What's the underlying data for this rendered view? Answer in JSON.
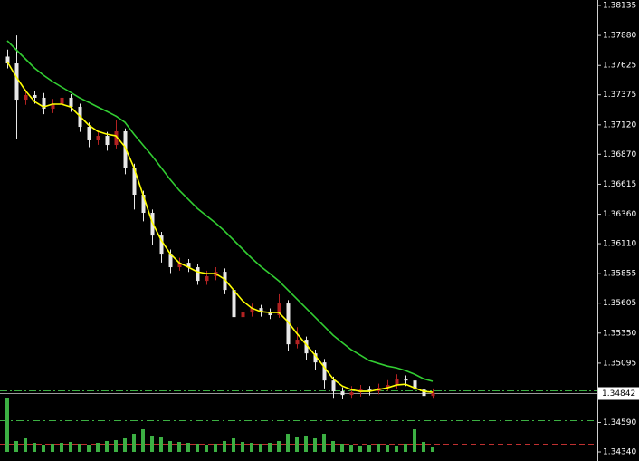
{
  "chart_data": {
    "type": "candlestick",
    "ylim": [
      1.34263,
      1.38181
    ],
    "yticks": [
      1.38135,
      {
        "value": 1.3788,
        "label": "1.37880"
      },
      1.37625,
      1.37375,
      {
        "value": 1.3712,
        "label": "1.37120"
      },
      {
        "value": 1.3687,
        "label": "1.36870"
      },
      1.36615,
      {
        "value": 1.3636,
        "label": "1.36360"
      },
      {
        "value": 1.3611,
        "label": "1.36110"
      },
      1.35855,
      1.35605,
      {
        "value": 1.3535,
        "label": "1.35350"
      },
      1.35095,
      {
        "value": 1.3459,
        "label": "1.34590"
      },
      {
        "value": 1.3434,
        "label": "1.34340"
      }
    ],
    "last_price": 1.34842,
    "up_color": "#b22222",
    "down_color": "#e8e8e8",
    "candles": {
      "open": [
        1.377,
        1.37642,
        1.37334,
        1.37373,
        1.3735,
        1.37257,
        1.37296,
        1.3735,
        1.37273,
        1.37103,
        1.36988,
        1.37026,
        1.36949,
        1.37065,
        1.36757,
        1.36526,
        1.36372,
        1.36179,
        1.36025,
        1.3591,
        1.35948,
        1.3591,
        1.35794,
        1.35833,
        1.35871,
        1.35717,
        1.35486,
        1.35525,
        1.35563,
        1.35525,
        1.35502,
        1.35602,
        1.35255,
        1.35294,
        1.35178,
        1.35101,
        1.34947,
        1.34855,
        1.34824,
        1.34847,
        1.3487,
        1.34855,
        1.34886,
        1.34909,
        1.34963,
        1.34947,
        1.3487,
        1.34816
      ],
      "high": [
        1.3776,
        1.3788,
        1.3742,
        1.3741,
        1.3739,
        1.3734,
        1.374,
        1.3738,
        1.373,
        1.3714,
        1.3707,
        1.3706,
        1.3716,
        1.3709,
        1.3679,
        1.3656,
        1.364,
        1.3621,
        1.3606,
        1.3599,
        1.3598,
        1.3594,
        1.3588,
        1.3591,
        1.359,
        1.3574,
        1.3557,
        1.356,
        1.3559,
        1.3556,
        1.3568,
        1.3563,
        1.354,
        1.3532,
        1.3521,
        1.3513,
        1.3498,
        1.3489,
        1.349,
        1.3491,
        1.349,
        1.3492,
        1.3495,
        1.35,
        1.3499,
        1.3498,
        1.349,
        1.3488
      ],
      "low": [
        1.376,
        1.37,
        1.3729,
        1.373,
        1.3721,
        1.3722,
        1.3726,
        1.3723,
        1.3706,
        1.3693,
        1.3695,
        1.369,
        1.3692,
        1.367,
        1.364,
        1.363,
        1.361,
        1.3595,
        1.3586,
        1.3588,
        1.3587,
        1.3576,
        1.3576,
        1.358,
        1.3568,
        1.354,
        1.3545,
        1.3549,
        1.3549,
        1.3547,
        1.3548,
        1.352,
        1.3522,
        1.3512,
        1.3504,
        1.3488,
        1.348,
        1.3479,
        1.348,
        1.3481,
        1.3482,
        1.3483,
        1.3486,
        1.3488,
        1.349,
        1.3444,
        1.3478,
        1.348
      ],
      "close": [
        1.37642,
        1.37334,
        1.37373,
        1.3735,
        1.37257,
        1.37296,
        1.3735,
        1.37273,
        1.37103,
        1.36988,
        1.37026,
        1.36949,
        1.37065,
        1.36757,
        1.36526,
        1.36372,
        1.36179,
        1.36025,
        1.3591,
        1.35948,
        1.3591,
        1.35794,
        1.35833,
        1.35871,
        1.35717,
        1.35486,
        1.35525,
        1.35563,
        1.35525,
        1.35502,
        1.35602,
        1.35255,
        1.35294,
        1.35178,
        1.35101,
        1.34947,
        1.34855,
        1.34824,
        1.34847,
        1.3487,
        1.34855,
        1.34886,
        1.34909,
        1.34963,
        1.34947,
        1.3487,
        1.34816,
        1.34842
      ]
    },
    "series": [
      {
        "color": "#ffff00",
        "values": [
          1.37657,
          1.37527,
          1.37411,
          1.37319,
          1.37272,
          1.37296,
          1.37296,
          1.37272,
          1.37195,
          1.37118,
          1.37065,
          1.37041,
          1.37026,
          1.36934,
          1.36757,
          1.36526,
          1.36295,
          1.36141,
          1.36025,
          1.35948,
          1.3591,
          1.35871,
          1.35856,
          1.35856,
          1.35809,
          1.35717,
          1.35625,
          1.35563,
          1.35532,
          1.35525,
          1.35525,
          1.35448,
          1.35347,
          1.35255,
          1.35163,
          1.35063,
          1.34962,
          1.34901,
          1.3487,
          1.34855,
          1.34855,
          1.3487,
          1.34885,
          1.34909,
          1.34916,
          1.34885,
          1.34855,
          1.34847
        ]
      },
      {
        "color": "#32cd32",
        "values": [
          1.37835,
          1.37758,
          1.37681,
          1.37604,
          1.37542,
          1.37488,
          1.37442,
          1.37396,
          1.37349,
          1.37311,
          1.37272,
          1.37234,
          1.37195,
          1.37142,
          1.37041,
          1.36949,
          1.36857,
          1.36757,
          1.36656,
          1.36564,
          1.36487,
          1.3641,
          1.36348,
          1.36287,
          1.36218,
          1.36141,
          1.36064,
          1.35987,
          1.35917,
          1.35856,
          1.35794,
          1.35717,
          1.3564,
          1.35563,
          1.35486,
          1.35409,
          1.35332,
          1.3527,
          1.35209,
          1.35163,
          1.35116,
          1.35093,
          1.3507,
          1.35055,
          1.35032,
          1.35001,
          1.34962,
          1.3494
        ]
      }
    ],
    "volume": {
      "color": "#3cb043",
      "ylim": [
        0,
        1000
      ],
      "values": [
        600,
        120,
        150,
        100,
        80,
        90,
        100,
        110,
        90,
        80,
        100,
        120,
        130,
        150,
        200,
        250,
        180,
        160,
        120,
        110,
        100,
        90,
        80,
        90,
        120,
        150,
        110,
        100,
        90,
        100,
        120,
        200,
        160,
        180,
        150,
        200,
        120,
        90,
        80,
        70,
        80,
        90,
        80,
        70,
        90,
        250,
        110,
        60
      ]
    },
    "levels": [
      {
        "value": 1.34865,
        "color": "#3cb043",
        "dash": "8 3 2 3"
      },
      {
        "value": 1.34608,
        "color": "#3cb043",
        "dash": "8 4 2 4"
      },
      {
        "value": 1.34408,
        "color": "#c03030",
        "dash": "6 4"
      }
    ]
  }
}
